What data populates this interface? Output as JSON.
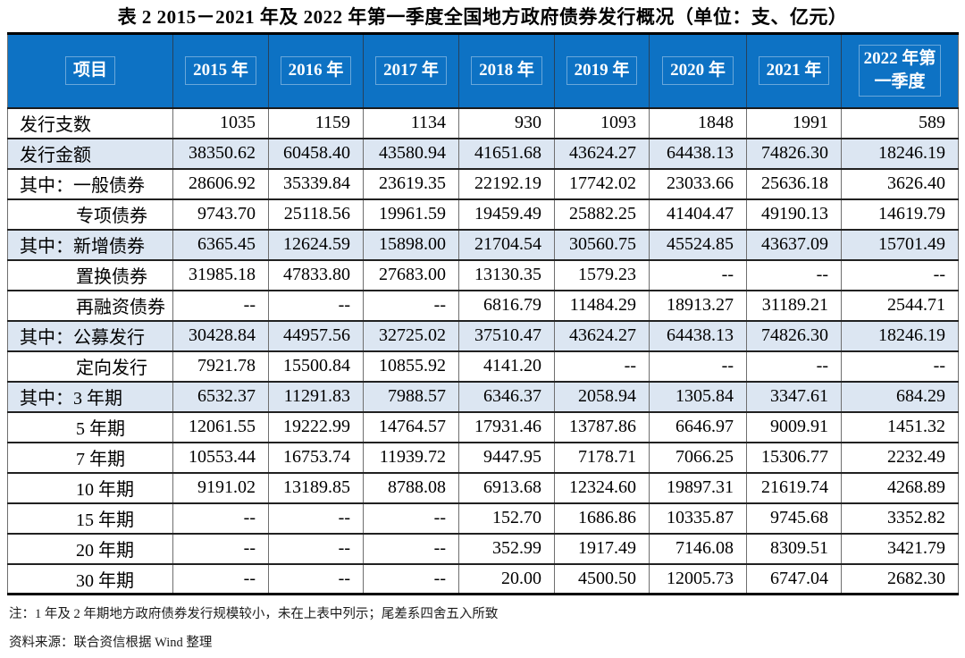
{
  "page": {
    "title": "表 2  2015－2021 年及 2022 年第一季度全国地方政府债券发行概况（单位：支、亿元）"
  },
  "table": {
    "columns": [
      "项目",
      "2015 年",
      "2016 年",
      "2017 年",
      "2018 年",
      "2019 年",
      "2020 年",
      "2021 年",
      "2022 年第一季度"
    ],
    "rows": [
      {
        "label": "发行支数",
        "indent": false,
        "highlight": false,
        "values": [
          "1035",
          "1159",
          "1134",
          "930",
          "1093",
          "1848",
          "1991",
          "589"
        ]
      },
      {
        "label": "发行金额",
        "indent": false,
        "highlight": true,
        "values": [
          "38350.62",
          "60458.40",
          "43580.94",
          "41651.68",
          "43624.27",
          "64438.13",
          "74826.30",
          "18246.19"
        ]
      },
      {
        "label": "其中：一般债券",
        "indent": false,
        "highlight": false,
        "values": [
          "28606.92",
          "35339.84",
          "23619.35",
          "22192.19",
          "17742.02",
          "23033.66",
          "25636.18",
          "3626.40"
        ]
      },
      {
        "label": "专项债券",
        "indent": true,
        "highlight": false,
        "values": [
          "9743.70",
          "25118.56",
          "19961.59",
          "19459.49",
          "25882.25",
          "41404.47",
          "49190.13",
          "14619.79"
        ]
      },
      {
        "label": "其中：新增债券",
        "indent": false,
        "highlight": true,
        "values": [
          "6365.45",
          "12624.59",
          "15898.00",
          "21704.54",
          "30560.75",
          "45524.85",
          "43637.09",
          "15701.49"
        ]
      },
      {
        "label": "置换债券",
        "indent": true,
        "highlight": false,
        "values": [
          "31985.18",
          "47833.80",
          "27683.00",
          "13130.35",
          "1579.23",
          "--",
          "--",
          "--"
        ]
      },
      {
        "label": "再融资债券",
        "indent": true,
        "highlight": false,
        "values": [
          "--",
          "--",
          "--",
          "6816.79",
          "11484.29",
          "18913.27",
          "31189.21",
          "2544.71"
        ]
      },
      {
        "label": "其中：公募发行",
        "indent": false,
        "highlight": true,
        "values": [
          "30428.84",
          "44957.56",
          "32725.02",
          "37510.47",
          "43624.27",
          "64438.13",
          "74826.30",
          "18246.19"
        ]
      },
      {
        "label": "定向发行",
        "indent": true,
        "highlight": false,
        "values": [
          "7921.78",
          "15500.84",
          "10855.92",
          "4141.20",
          "--",
          "--",
          "--",
          "--"
        ]
      },
      {
        "label": "其中：3 年期",
        "indent": false,
        "highlight": true,
        "values": [
          "6532.37",
          "11291.83",
          "7988.57",
          "6346.37",
          "2058.94",
          "1305.84",
          "3347.61",
          "684.29"
        ]
      },
      {
        "label": "5 年期",
        "indent": true,
        "highlight": false,
        "values": [
          "12061.55",
          "19222.99",
          "14764.57",
          "17931.46",
          "13787.86",
          "6646.97",
          "9009.91",
          "1451.32"
        ]
      },
      {
        "label": "7 年期",
        "indent": true,
        "highlight": false,
        "values": [
          "10553.44",
          "16753.74",
          "11939.72",
          "9447.95",
          "7178.71",
          "7066.25",
          "15306.77",
          "2232.49"
        ]
      },
      {
        "label": "10 年期",
        "indent": true,
        "highlight": false,
        "values": [
          "9191.02",
          "13189.85",
          "8788.08",
          "6913.68",
          "12324.60",
          "19897.31",
          "21619.74",
          "4268.89"
        ]
      },
      {
        "label": "15 年期",
        "indent": true,
        "highlight": false,
        "values": [
          "--",
          "--",
          "--",
          "152.70",
          "1686.86",
          "10335.87",
          "9745.68",
          "3352.82"
        ]
      },
      {
        "label": "20 年期",
        "indent": true,
        "highlight": false,
        "values": [
          "--",
          "--",
          "--",
          "352.99",
          "1917.49",
          "7146.08",
          "8309.51",
          "3421.79"
        ]
      },
      {
        "label": "30 年期",
        "indent": true,
        "highlight": false,
        "values": [
          "--",
          "--",
          "--",
          "20.00",
          "4500.50",
          "12005.73",
          "6747.04",
          "2682.30"
        ]
      }
    ]
  },
  "notes": {
    "note": "注：1 年及 2 年期地方政府债券发行规模较小，未在上表中列示；尾差系四舍五入所致",
    "source": "资料来源：联合资信根据 Wind 整理"
  },
  "colors": {
    "header_bg": "#0D72C4",
    "header_text": "#FFFFFF",
    "highlight_row_bg": "#DCE6F2"
  }
}
